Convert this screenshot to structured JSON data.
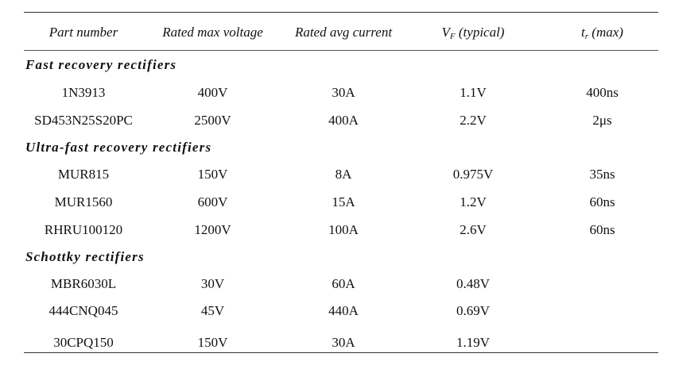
{
  "table": {
    "headers": {
      "part": "Part number",
      "voltage": "Rated max voltage",
      "current": "Rated avg current",
      "vf_main": "V",
      "vf_sub": "F",
      "vf_rest": " (typical)",
      "tr_main": "t",
      "tr_sub": "r",
      "tr_rest": " (max)"
    },
    "sections": [
      {
        "title": "Fast recovery rectifiers",
        "rows": [
          {
            "part": "1N3913",
            "voltage": "400V",
            "current": "30A",
            "vf": "1.1V",
            "tr": "400ns"
          },
          {
            "part": "SD453N25S20PC",
            "voltage": "2500V",
            "current": "400A",
            "vf": "2.2V",
            "tr": "2μs"
          }
        ]
      },
      {
        "title": "Ultra-fast recovery rectifiers",
        "rows": [
          {
            "part": "MUR815",
            "voltage": "150V",
            "current": "8A",
            "vf": "0.975V",
            "tr": "35ns"
          },
          {
            "part": "MUR1560",
            "voltage": "600V",
            "current": "15A",
            "vf": "1.2V",
            "tr": "60ns"
          },
          {
            "part": "RHRU100120",
            "voltage": "1200V",
            "current": "100A",
            "vf": "2.6V",
            "tr": "60ns"
          }
        ]
      },
      {
        "title": "Schottky rectifiers",
        "rows": [
          {
            "part": "MBR6030L",
            "voltage": "30V",
            "current": "60A",
            "vf": "0.48V",
            "tr": ""
          },
          {
            "part": "444CNQ045",
            "voltage": "45V",
            "current": "440A",
            "vf": "0.69V",
            "tr": ""
          },
          {
            "part": "30CPQ150",
            "voltage": "150V",
            "current": "30A",
            "vf": "1.19V",
            "tr": ""
          }
        ]
      }
    ]
  }
}
